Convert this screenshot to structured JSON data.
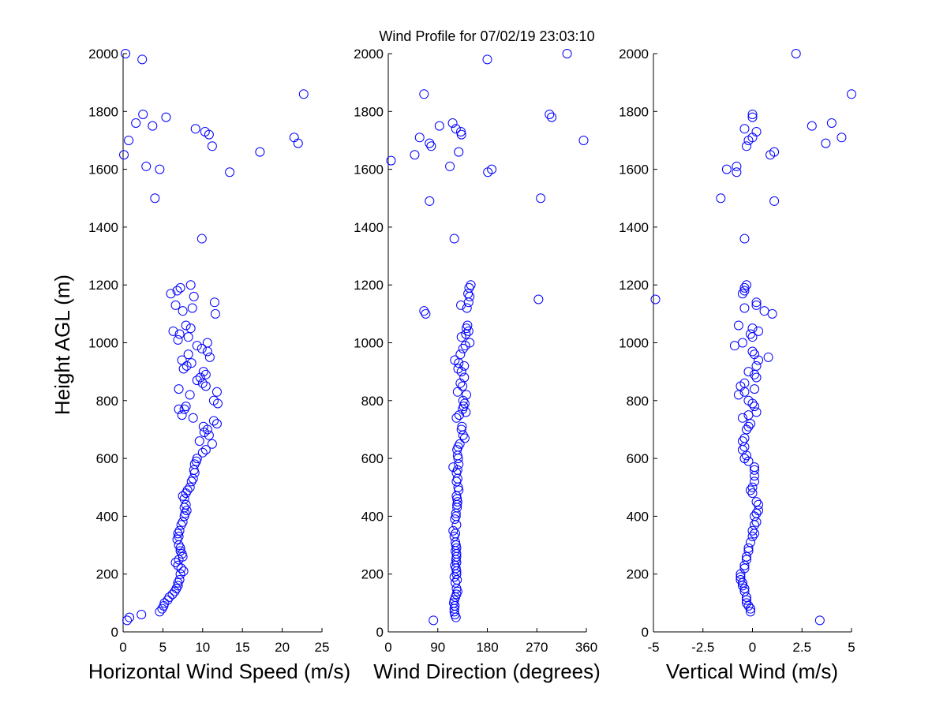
{
  "figure": {
    "title": "Wind Profile for  07/02/19 23:03:10"
  },
  "colors": {
    "marker": "#0000ff",
    "axis": "#000000",
    "background": "#ffffff"
  },
  "chart_data": [
    {
      "type": "scatter",
      "id": "speed",
      "xlabel": "Horizontal Wind Speed (m/s)",
      "ylabel": "Height AGL (m)",
      "xlim": [
        0,
        25
      ],
      "ylim": [
        0,
        2000
      ],
      "xticks": [
        0,
        5,
        10,
        15,
        20,
        25
      ],
      "xtick_labels": [
        "0",
        "5",
        "10",
        "15",
        "20",
        "25"
      ],
      "yticks": [
        0,
        200,
        400,
        600,
        800,
        1000,
        1200,
        1400,
        1600,
        1800,
        2000
      ],
      "ytick_labels": [
        "0",
        "200",
        "400",
        "600",
        "800",
        "1000",
        "1200",
        "1400",
        "1600",
        "1800",
        "2000"
      ],
      "points": [
        [
          0.3,
          2000
        ],
        [
          2.4,
          1980
        ],
        [
          22.7,
          1860
        ],
        [
          2.5,
          1790
        ],
        [
          5.4,
          1780
        ],
        [
          1.6,
          1760
        ],
        [
          3.7,
          1750
        ],
        [
          9.1,
          1740
        ],
        [
          10.3,
          1730
        ],
        [
          10.8,
          1720
        ],
        [
          21.5,
          1710
        ],
        [
          0.7,
          1700
        ],
        [
          22.0,
          1690
        ],
        [
          11.2,
          1680
        ],
        [
          17.2,
          1660
        ],
        [
          0.1,
          1650
        ],
        [
          2.9,
          1610
        ],
        [
          4.6,
          1600
        ],
        [
          13.4,
          1590
        ],
        [
          4.0,
          1500
        ],
        [
          9.9,
          1360
        ],
        [
          8.5,
          1200
        ],
        [
          7.2,
          1190
        ],
        [
          6.8,
          1180
        ],
        [
          6.0,
          1170
        ],
        [
          8.9,
          1160
        ],
        [
          11.5,
          1140
        ],
        [
          6.6,
          1130
        ],
        [
          8.7,
          1120
        ],
        [
          7.5,
          1110
        ],
        [
          11.6,
          1100
        ],
        [
          7.9,
          1060
        ],
        [
          6.3,
          1040
        ],
        [
          8.5,
          1050
        ],
        [
          7.1,
          1030
        ],
        [
          8.2,
          1020
        ],
        [
          6.9,
          1010
        ],
        [
          10.6,
          1000
        ],
        [
          9.3,
          990
        ],
        [
          9.9,
          980
        ],
        [
          10.6,
          970
        ],
        [
          8.2,
          960
        ],
        [
          10.9,
          950
        ],
        [
          7.4,
          940
        ],
        [
          8.6,
          930
        ],
        [
          8.0,
          920
        ],
        [
          7.6,
          910
        ],
        [
          10.1,
          900
        ],
        [
          10.4,
          890
        ],
        [
          9.7,
          880
        ],
        [
          9.3,
          870
        ],
        [
          10.0,
          860
        ],
        [
          10.4,
          850
        ],
        [
          7.0,
          840
        ],
        [
          11.8,
          830
        ],
        [
          8.4,
          820
        ],
        [
          11.4,
          800
        ],
        [
          11.9,
          790
        ],
        [
          7.9,
          780
        ],
        [
          7.7,
          770
        ],
        [
          7.0,
          770
        ],
        [
          7.4,
          750
        ],
        [
          8.8,
          740
        ],
        [
          11.8,
          720
        ],
        [
          11.4,
          730
        ],
        [
          10.1,
          710
        ],
        [
          10.6,
          700
        ],
        [
          10.2,
          690
        ],
        [
          10.8,
          680
        ],
        [
          9.6,
          660
        ],
        [
          11.2,
          650
        ],
        [
          10.4,
          630
        ],
        [
          10.0,
          620
        ],
        [
          9.3,
          600
        ],
        [
          9.2,
          590
        ],
        [
          9.0,
          580
        ],
        [
          8.9,
          560
        ],
        [
          9.0,
          550
        ],
        [
          8.8,
          530
        ],
        [
          8.6,
          520
        ],
        [
          8.4,
          500
        ],
        [
          8.1,
          490
        ],
        [
          7.9,
          480
        ],
        [
          7.5,
          470
        ],
        [
          7.7,
          460
        ],
        [
          7.9,
          440
        ],
        [
          7.7,
          430
        ],
        [
          8.0,
          420
        ],
        [
          7.8,
          410
        ],
        [
          7.7,
          400
        ],
        [
          7.5,
          380
        ],
        [
          7.3,
          370
        ],
        [
          7.1,
          350
        ],
        [
          6.9,
          340
        ],
        [
          7.0,
          330
        ],
        [
          6.8,
          320
        ],
        [
          7.0,
          300
        ],
        [
          7.2,
          290
        ],
        [
          7.2,
          280
        ],
        [
          7.4,
          270
        ],
        [
          7.5,
          260
        ],
        [
          7.0,
          250
        ],
        [
          6.6,
          240
        ],
        [
          6.9,
          230
        ],
        [
          7.3,
          220
        ],
        [
          7.6,
          210
        ],
        [
          7.2,
          200
        ],
        [
          7.1,
          180
        ],
        [
          6.9,
          170
        ],
        [
          6.9,
          160
        ],
        [
          6.7,
          150
        ],
        [
          6.5,
          140
        ],
        [
          6.2,
          130
        ],
        [
          5.8,
          120
        ],
        [
          5.6,
          110
        ],
        [
          5.2,
          100
        ],
        [
          5.1,
          90
        ],
        [
          4.9,
          80
        ],
        [
          4.6,
          70
        ],
        [
          2.3,
          60
        ],
        [
          0.8,
          50
        ],
        [
          0.5,
          40
        ]
      ]
    },
    {
      "type": "scatter",
      "id": "direction",
      "xlabel": "Wind Direction (degrees)",
      "ylabel": "",
      "xlim": [
        0,
        360
      ],
      "ylim": [
        0,
        2000
      ],
      "xticks": [
        0,
        90,
        180,
        270,
        360
      ],
      "xtick_labels": [
        "0",
        "90",
        "180",
        "270",
        "360"
      ],
      "yticks": [
        0,
        200,
        400,
        600,
        800,
        1000,
        1200,
        1400,
        1600,
        1800,
        2000
      ],
      "ytick_labels": [
        "0",
        "200",
        "400",
        "600",
        "800",
        "1000",
        "1200",
        "1400",
        "1600",
        "1800",
        "2000"
      ],
      "points": [
        [
          325,
          2000
        ],
        [
          180,
          1980
        ],
        [
          65,
          1860
        ],
        [
          293,
          1790
        ],
        [
          297,
          1780
        ],
        [
          117,
          1760
        ],
        [
          93,
          1750
        ],
        [
          123,
          1740
        ],
        [
          132,
          1730
        ],
        [
          133,
          1720
        ],
        [
          57,
          1710
        ],
        [
          355,
          1700
        ],
        [
          75,
          1690
        ],
        [
          78,
          1680
        ],
        [
          128,
          1660
        ],
        [
          48,
          1650
        ],
        [
          5,
          1630
        ],
        [
          112,
          1610
        ],
        [
          188,
          1600
        ],
        [
          181,
          1590
        ],
        [
          277,
          1500
        ],
        [
          75,
          1490
        ],
        [
          120,
          1360
        ],
        [
          150,
          1200
        ],
        [
          147,
          1190
        ],
        [
          145,
          1170
        ],
        [
          148,
          1160
        ],
        [
          273,
          1150
        ],
        [
          146,
          1140
        ],
        [
          132,
          1130
        ],
        [
          143,
          1120
        ],
        [
          65,
          1110
        ],
        [
          68,
          1100
        ],
        [
          144,
          1060
        ],
        [
          142,
          1050
        ],
        [
          146,
          1040
        ],
        [
          141,
          1030
        ],
        [
          133,
          1020
        ],
        [
          148,
          1000
        ],
        [
          140,
          990
        ],
        [
          136,
          980
        ],
        [
          131,
          960
        ],
        [
          121,
          940
        ],
        [
          128,
          930
        ],
        [
          138,
          920
        ],
        [
          127,
          910
        ],
        [
          133,
          900
        ],
        [
          138,
          880
        ],
        [
          131,
          860
        ],
        [
          135,
          850
        ],
        [
          126,
          830
        ],
        [
          142,
          820
        ],
        [
          136,
          800
        ],
        [
          139,
          790
        ],
        [
          137,
          780
        ],
        [
          135,
          770
        ],
        [
          141,
          760
        ],
        [
          129,
          750
        ],
        [
          124,
          740
        ],
        [
          134,
          710
        ],
        [
          133,
          700
        ],
        [
          136,
          680
        ],
        [
          139,
          670
        ],
        [
          130,
          650
        ],
        [
          127,
          640
        ],
        [
          125,
          630
        ],
        [
          126,
          610
        ],
        [
          127,
          600
        ],
        [
          128,
          580
        ],
        [
          118,
          570
        ],
        [
          126,
          560
        ],
        [
          124,
          550
        ],
        [
          126,
          530
        ],
        [
          124,
          520
        ],
        [
          127,
          500
        ],
        [
          128,
          490
        ],
        [
          124,
          470
        ],
        [
          125,
          460
        ],
        [
          126,
          450
        ],
        [
          125,
          440
        ],
        [
          125,
          430
        ],
        [
          123,
          410
        ],
        [
          123,
          400
        ],
        [
          121,
          390
        ],
        [
          124,
          370
        ],
        [
          118,
          350
        ],
        [
          122,
          340
        ],
        [
          120,
          330
        ],
        [
          122,
          310
        ],
        [
          123,
          300
        ],
        [
          124,
          290
        ],
        [
          122,
          280
        ],
        [
          124,
          270
        ],
        [
          124,
          260
        ],
        [
          123,
          250
        ],
        [
          124,
          240
        ],
        [
          121,
          230
        ],
        [
          123,
          220
        ],
        [
          124,
          210
        ],
        [
          124,
          200
        ],
        [
          120,
          190
        ],
        [
          125,
          180
        ],
        [
          122,
          170
        ],
        [
          124,
          150
        ],
        [
          126,
          140
        ],
        [
          124,
          130
        ],
        [
          122,
          120
        ],
        [
          120,
          110
        ],
        [
          119,
          100
        ],
        [
          121,
          90
        ],
        [
          120,
          80
        ],
        [
          120,
          70
        ],
        [
          121,
          60
        ],
        [
          123,
          50
        ],
        [
          82,
          40
        ]
      ]
    },
    {
      "type": "scatter",
      "id": "vertical",
      "xlabel": "Vertical Wind (m/s)",
      "ylabel": "",
      "xlim": [
        -5,
        5
      ],
      "ylim": [
        0,
        2000
      ],
      "xticks": [
        -5,
        -2.5,
        0,
        2.5,
        5
      ],
      "xtick_labels": [
        "-5",
        "-2.5",
        "0",
        "2.5",
        "5"
      ],
      "yticks": [
        0,
        200,
        400,
        600,
        800,
        1000,
        1200,
        1400,
        1600,
        1800,
        2000
      ],
      "ytick_labels": [
        "0",
        "200",
        "400",
        "600",
        "800",
        "1000",
        "1200",
        "1400",
        "1600",
        "1800",
        "2000"
      ],
      "points": [
        [
          2.2,
          2000
        ],
        [
          5.0,
          1860
        ],
        [
          0.0,
          1790
        ],
        [
          0.0,
          1780
        ],
        [
          4.0,
          1760
        ],
        [
          3.0,
          1750
        ],
        [
          -0.4,
          1740
        ],
        [
          0.2,
          1730
        ],
        [
          0.0,
          1710
        ],
        [
          4.5,
          1710
        ],
        [
          -0.2,
          1700
        ],
        [
          3.7,
          1690
        ],
        [
          -0.3,
          1680
        ],
        [
          1.1,
          1660
        ],
        [
          0.9,
          1650
        ],
        [
          -0.8,
          1610
        ],
        [
          -1.3,
          1600
        ],
        [
          -0.8,
          1590
        ],
        [
          -1.6,
          1500
        ],
        [
          1.1,
          1490
        ],
        [
          -0.4,
          1360
        ],
        [
          -0.3,
          1200
        ],
        [
          -0.4,
          1190
        ],
        [
          -0.4,
          1180
        ],
        [
          -0.5,
          1170
        ],
        [
          -4.9,
          1150
        ],
        [
          0.2,
          1140
        ],
        [
          0.2,
          1130
        ],
        [
          -0.4,
          1120
        ],
        [
          0.6,
          1110
        ],
        [
          1.0,
          1100
        ],
        [
          -0.7,
          1060
        ],
        [
          0.0,
          1050
        ],
        [
          0.3,
          1040
        ],
        [
          -0.1,
          1030
        ],
        [
          0.0,
          1020
        ],
        [
          -0.5,
          1000
        ],
        [
          -0.9,
          990
        ],
        [
          0.0,
          970
        ],
        [
          0.1,
          960
        ],
        [
          0.8,
          950
        ],
        [
          0.3,
          940
        ],
        [
          0.2,
          920
        ],
        [
          -0.2,
          900
        ],
        [
          0.1,
          890
        ],
        [
          0.2,
          880
        ],
        [
          -0.4,
          860
        ],
        [
          -0.6,
          850
        ],
        [
          0.1,
          840
        ],
        [
          -0.4,
          830
        ],
        [
          -0.7,
          820
        ],
        [
          -0.2,
          800
        ],
        [
          0.0,
          790
        ],
        [
          0.1,
          780
        ],
        [
          0.2,
          760
        ],
        [
          -0.2,
          750
        ],
        [
          -0.5,
          740
        ],
        [
          -0.1,
          720
        ],
        [
          -0.2,
          710
        ],
        [
          -0.3,
          700
        ],
        [
          -0.4,
          670
        ],
        [
          -0.5,
          660
        ],
        [
          -0.4,
          640
        ],
        [
          -0.5,
          630
        ],
        [
          -0.3,
          610
        ],
        [
          -0.4,
          600
        ],
        [
          -0.2,
          590
        ],
        [
          0.1,
          570
        ],
        [
          0.1,
          560
        ],
        [
          0.1,
          540
        ],
        [
          0.1,
          520
        ],
        [
          0.0,
          500
        ],
        [
          -0.1,
          490
        ],
        [
          0.0,
          480
        ],
        [
          0.2,
          450
        ],
        [
          0.3,
          440
        ],
        [
          0.3,
          420
        ],
        [
          0.2,
          410
        ],
        [
          0.1,
          400
        ],
        [
          0.2,
          380
        ],
        [
          0.1,
          370
        ],
        [
          0.0,
          350
        ],
        [
          0.1,
          340
        ],
        [
          0.0,
          330
        ],
        [
          -0.1,
          310
        ],
        [
          -0.2,
          290
        ],
        [
          -0.2,
          280
        ],
        [
          -0.3,
          260
        ],
        [
          -0.3,
          250
        ],
        [
          -0.4,
          230
        ],
        [
          -0.4,
          220
        ],
        [
          -0.6,
          200
        ],
        [
          -0.6,
          190
        ],
        [
          -0.6,
          180
        ],
        [
          -0.5,
          170
        ],
        [
          -0.5,
          160
        ],
        [
          -0.4,
          150
        ],
        [
          -0.4,
          140
        ],
        [
          -0.3,
          120
        ],
        [
          -0.3,
          110
        ],
        [
          -0.3,
          100
        ],
        [
          -0.2,
          90
        ],
        [
          -0.1,
          80
        ],
        [
          -0.1,
          70
        ],
        [
          3.4,
          40
        ]
      ]
    }
  ]
}
